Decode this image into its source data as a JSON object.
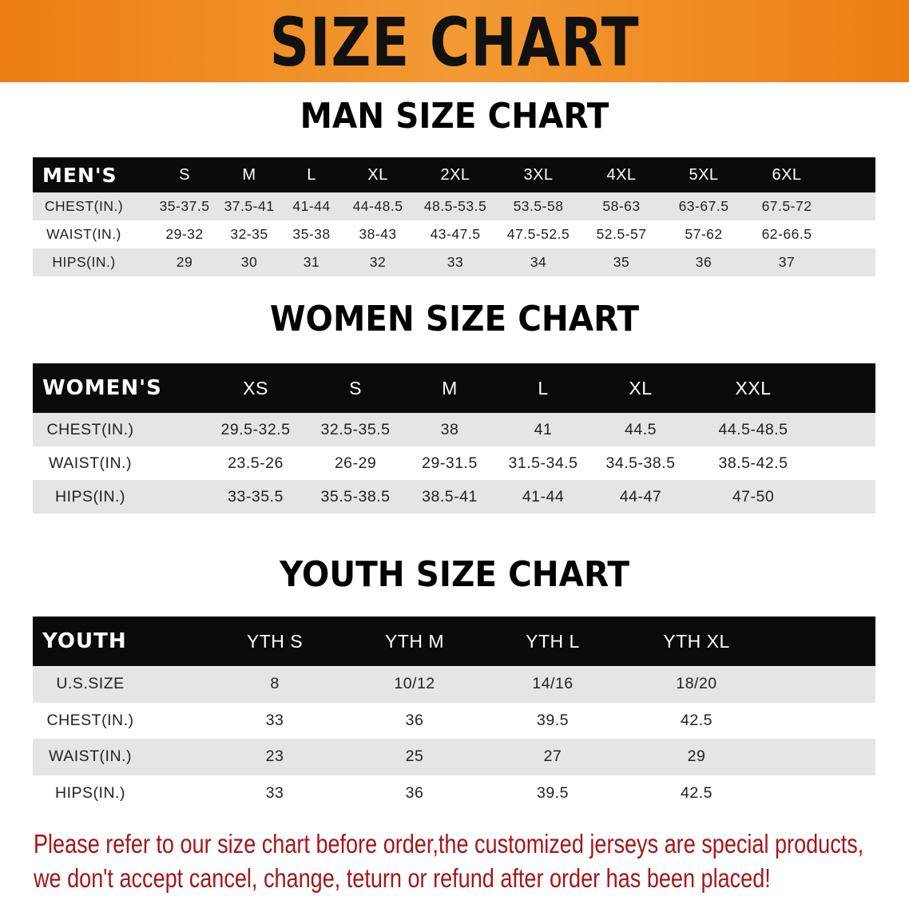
{
  "banner": {
    "title": "SIZE CHART",
    "color": "#ec7e14"
  },
  "men": {
    "title": "MAN SIZE CHART",
    "corner": "MEN'S",
    "sizes": [
      "S",
      "M",
      "L",
      "XL",
      "2XL",
      "3XL",
      "4XL",
      "5XL",
      "6XL"
    ],
    "rows": [
      {
        "label": "CHEST(IN.)",
        "values": [
          "35-37.5",
          "37.5-41",
          "41-44",
          "44-48.5",
          "48.5-53.5",
          "53.5-58",
          "58-63",
          "63-67.5",
          "67.5-72"
        ]
      },
      {
        "label": "WAIST(IN.)",
        "values": [
          "29-32",
          "32-35",
          "35-38",
          "38-43",
          "43-47.5",
          "47.5-52.5",
          "52.5-57",
          "57-62",
          "62-66.5"
        ]
      },
      {
        "label": "HIPS(IN.)",
        "values": [
          "29",
          "30",
          "31",
          "32",
          "33",
          "34",
          "35",
          "36",
          "37"
        ]
      }
    ]
  },
  "women": {
    "title": "WOMEN SIZE CHART",
    "corner": "WOMEN'S",
    "sizes": [
      "XS",
      "S",
      "M",
      "L",
      "XL",
      "XXL"
    ],
    "rows": [
      {
        "label": "CHEST(IN.)",
        "values": [
          "29.5-32.5",
          "32.5-35.5",
          "38",
          "41",
          "44.5",
          "44.5-48.5"
        ]
      },
      {
        "label": "WAIST(IN.)",
        "values": [
          "23.5-26",
          "26-29",
          "29-31.5",
          "31.5-34.5",
          "34.5-38.5",
          "38.5-42.5"
        ]
      },
      {
        "label": "HIPS(IN.)",
        "values": [
          "33-35.5",
          "35.5-38.5",
          "38.5-41",
          "41-44",
          "44-47",
          "47-50"
        ]
      }
    ]
  },
  "youth": {
    "title": "YOUTH SIZE CHART",
    "corner": "YOUTH",
    "sizes": [
      "YTH S",
      "YTH M",
      "YTH L",
      "YTH XL"
    ],
    "rows": [
      {
        "label": "U.S.SIZE",
        "values": [
          "8",
          "10/12",
          "14/16",
          "18/20"
        ]
      },
      {
        "label": "CHEST(IN.)",
        "values": [
          "33",
          "36",
          "39.5",
          "42.5"
        ]
      },
      {
        "label": "WAIST(IN.)",
        "values": [
          "23",
          "25",
          "27",
          "29"
        ]
      },
      {
        "label": "HIPS(IN.)",
        "values": [
          "33",
          "36",
          "39.5",
          "42.5"
        ]
      }
    ]
  },
  "notice": {
    "line1": "Please refer to our size chart before order,the customized jerseys are special products,",
    "line2": "we don't accept cancel, change, teturn or refund after order has been placed!",
    "color": "#a4161a"
  }
}
